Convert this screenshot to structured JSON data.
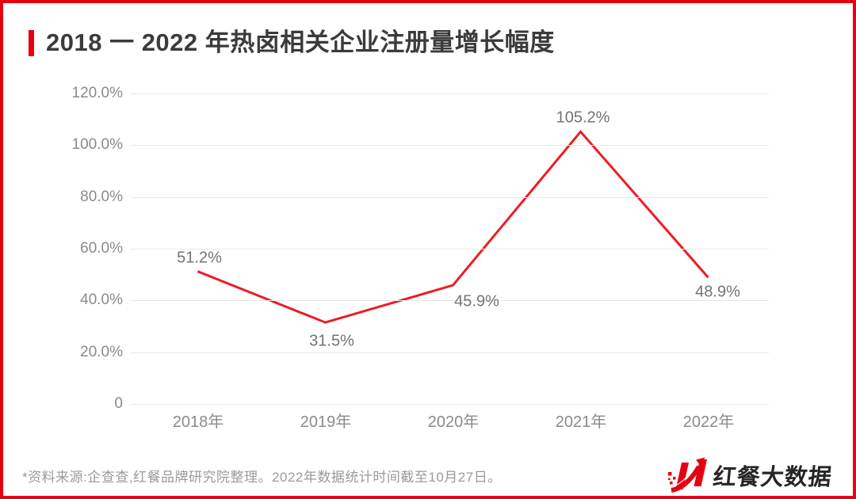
{
  "title": {
    "text": "2018 一 2022 年热卤相关企业注册量增长幅度"
  },
  "chart_data": {
    "type": "line",
    "title": "2018 一 2022 年热卤相关企业注册量增长幅度",
    "categories": [
      "2018年",
      "2019年",
      "2020年",
      "2021年",
      "2022年"
    ],
    "values": [
      51.2,
      31.5,
      45.9,
      105.2,
      48.9
    ],
    "value_labels": [
      "51.2%",
      "31.5%",
      "45.9%",
      "105.2%",
      "48.9%"
    ],
    "y_ticks": [
      "120.0%",
      "100.0%",
      "80.0%",
      "60.0%",
      "40.0%",
      "20.0%",
      "0"
    ],
    "y_tick_values": [
      120,
      100,
      80,
      60,
      40,
      20,
      0
    ],
    "ylim": [
      0,
      120
    ],
    "xlabel": "",
    "ylabel": "",
    "grid": true,
    "legend": "none",
    "line_color": "#ed1c24"
  },
  "footer": {
    "source_note": "*资料来源:企查查,红餐品牌研究院整理。2022年数据统计时间截至10月27日。"
  },
  "logo": {
    "text": "红餐大数据",
    "icon": "hongcan-h-arrow-icon"
  },
  "colors": {
    "accent": "#e60012",
    "line": "#ed1c24",
    "grid": "#e7e7e7",
    "title_text": "#3b3b3b",
    "axis_label": "#8a8a8a",
    "value_label": "#737373",
    "footer_text": "#9a9a9a"
  }
}
